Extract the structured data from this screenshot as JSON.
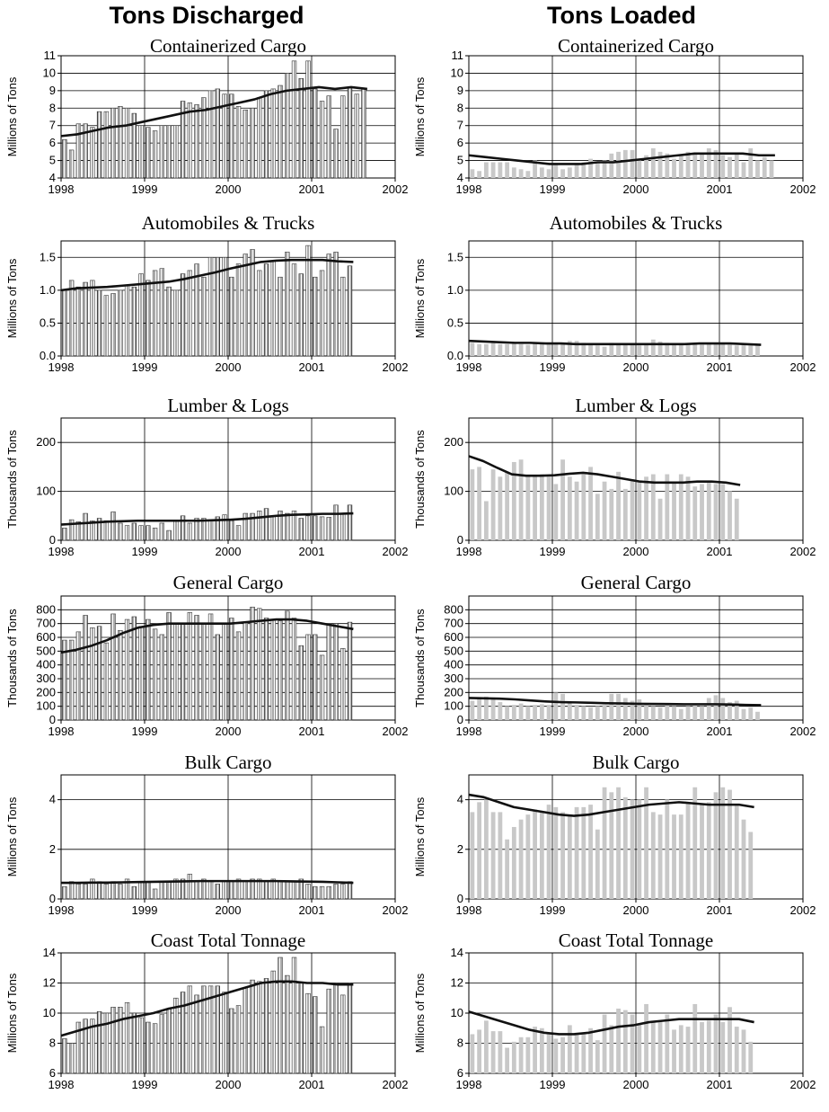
{
  "headings": {
    "left": "Tons Discharged",
    "right": "Tons Loaded"
  },
  "chart_data": [
    {
      "type": "bar",
      "panel": "discharged",
      "title": "Containerized Cargo",
      "ylabel": "Millions of Tons",
      "ylim": [
        4,
        11
      ],
      "yticks": [
        4,
        5,
        6,
        7,
        8,
        9,
        10,
        11
      ],
      "ytick_labels": [
        "4",
        "5",
        "6",
        "7",
        "8",
        "9",
        "10",
        "11"
      ],
      "xlim": [
        1998,
        2002
      ],
      "xticks": [
        "1998",
        "1999",
        "2000",
        "2001",
        "2002"
      ],
      "bar_style": "hatched",
      "x_start": 1998.0,
      "x_step": 0.0833,
      "values": [
        6.2,
        5.6,
        7.1,
        7.1,
        6.9,
        7.8,
        7.8,
        8.0,
        8.1,
        8.0,
        7.7,
        7.0,
        6.9,
        6.7,
        7.0,
        7.0,
        7.0,
        8.4,
        8.3,
        8.2,
        8.6,
        9.0,
        9.1,
        8.8,
        8.8,
        8.1,
        7.9,
        8.0,
        8.6,
        9.0,
        9.1,
        9.3,
        10.0,
        10.7,
        9.7,
        10.7,
        9.1,
        8.4,
        8.7,
        6.8,
        8.7,
        9.2,
        8.8,
        9.1
      ],
      "trend": [
        6.4,
        6.5,
        6.7,
        6.9,
        7.0,
        7.2,
        7.4,
        7.6,
        7.8,
        7.9,
        8.1,
        8.3,
        8.5,
        8.8,
        9.0,
        9.1,
        9.2,
        9.1,
        9.2,
        9.1
      ]
    },
    {
      "type": "bar",
      "panel": "loaded",
      "title": "Containerized Cargo",
      "ylabel": "Millions of Tons",
      "ylim": [
        4,
        11
      ],
      "yticks": [
        4,
        5,
        6,
        7,
        8,
        9,
        10,
        11
      ],
      "ytick_labels": [
        "4",
        "5",
        "6",
        "7",
        "8",
        "9",
        "10",
        "11"
      ],
      "xlim": [
        1998,
        2002
      ],
      "xticks": [
        "1998",
        "1999",
        "2000",
        "2001",
        "2002"
      ],
      "bar_style": "gray",
      "x_start": 1998.0,
      "x_step": 0.0833,
      "values": [
        4.5,
        4.4,
        4.9,
        4.9,
        4.9,
        4.9,
        4.6,
        4.5,
        4.4,
        5.0,
        4.6,
        4.5,
        4.8,
        4.5,
        4.6,
        4.8,
        4.9,
        5.1,
        4.9,
        5.0,
        5.4,
        5.5,
        5.6,
        5.6,
        5.0,
        5.3,
        5.7,
        5.5,
        5.4,
        5.1,
        5.3,
        5.5,
        5.4,
        5.4,
        5.7,
        5.6,
        5.3,
        5.2,
        5.4,
        4.9,
        5.7,
        5.0,
        5.2,
        5.0
      ],
      "trend": [
        5.3,
        5.2,
        5.1,
        5.0,
        4.9,
        4.8,
        4.8,
        4.8,
        4.9,
        4.9,
        5.0,
        5.1,
        5.2,
        5.3,
        5.4,
        5.4,
        5.4,
        5.4,
        5.3,
        5.3
      ]
    },
    {
      "type": "bar",
      "panel": "discharged",
      "title": "Automobiles & Trucks",
      "ylabel": "Millions of Tons",
      "ylim": [
        0,
        1.75
      ],
      "yticks": [
        0,
        0.5,
        1.0,
        1.5
      ],
      "ytick_labels": [
        "0.0",
        "0.5",
        "1.0",
        "1.5"
      ],
      "xlim": [
        1998,
        2002
      ],
      "xticks": [
        "1998",
        "1999",
        "2000",
        "2001",
        "2002"
      ],
      "bar_style": "hatched",
      "x_start": 1998.0,
      "x_step": 0.0833,
      "values": [
        1.0,
        1.15,
        1.05,
        1.12,
        1.15,
        1.0,
        0.92,
        0.95,
        1.0,
        1.08,
        1.05,
        1.25,
        1.15,
        1.3,
        1.33,
        1.05,
        1.0,
        1.25,
        1.3,
        1.4,
        1.2,
        1.5,
        1.5,
        1.5,
        1.2,
        1.4,
        1.55,
        1.62,
        1.3,
        1.4,
        1.45,
        1.2,
        1.58,
        1.4,
        1.25,
        1.68,
        1.2,
        1.3,
        1.55,
        1.58,
        1.2,
        1.37
      ],
      "trend": [
        1.0,
        1.03,
        1.04,
        1.05,
        1.07,
        1.09,
        1.11,
        1.13,
        1.17,
        1.22,
        1.27,
        1.33,
        1.38,
        1.43,
        1.45,
        1.46,
        1.46,
        1.46,
        1.44,
        1.43
      ]
    },
    {
      "type": "bar",
      "panel": "loaded",
      "title": "Automobiles & Trucks",
      "ylabel": "Millions of Tons",
      "ylim": [
        0,
        1.75
      ],
      "yticks": [
        0,
        0.5,
        1.0,
        1.5
      ],
      "ytick_labels": [
        "0.0",
        "0.5",
        "1.0",
        "1.5"
      ],
      "xlim": [
        1998,
        2002
      ],
      "xticks": [
        "1998",
        "1999",
        "2000",
        "2001",
        "2002"
      ],
      "bar_style": "gray",
      "x_start": 1998.0,
      "x_step": 0.0833,
      "values": [
        0.2,
        0.18,
        0.18,
        0.2,
        0.18,
        0.18,
        0.19,
        0.18,
        0.17,
        0.2,
        0.19,
        0.18,
        0.18,
        0.18,
        0.23,
        0.23,
        0.2,
        0.18,
        0.16,
        0.14,
        0.2,
        0.18,
        0.17,
        0.18,
        0.16,
        0.18,
        0.25,
        0.22,
        0.2,
        0.19,
        0.18,
        0.17,
        0.18,
        0.17,
        0.18,
        0.19,
        0.18,
        0.17,
        0.16,
        0.17,
        0.16,
        0.16
      ],
      "trend": [
        0.23,
        0.22,
        0.21,
        0.2,
        0.2,
        0.19,
        0.19,
        0.18,
        0.18,
        0.18,
        0.18,
        0.18,
        0.18,
        0.18,
        0.18,
        0.19,
        0.19,
        0.19,
        0.18,
        0.17
      ]
    },
    {
      "type": "bar",
      "panel": "discharged",
      "title": "Lumber & Logs",
      "ylabel": "Thousands of Tons",
      "ylim": [
        0,
        250
      ],
      "yticks": [
        0,
        100,
        200
      ],
      "ytick_labels": [
        "0",
        "100",
        "200"
      ],
      "xlim": [
        1998,
        2002
      ],
      "xticks": [
        "1998",
        "1999",
        "2000",
        "2001",
        "2002"
      ],
      "bar_style": "hatched",
      "x_start": 1998.0,
      "x_step": 0.0833,
      "values": [
        25,
        42,
        38,
        55,
        40,
        45,
        40,
        58,
        35,
        30,
        35,
        30,
        30,
        25,
        35,
        20,
        40,
        50,
        35,
        45,
        45,
        40,
        48,
        52,
        40,
        30,
        55,
        55,
        60,
        65,
        50,
        60,
        55,
        60,
        45,
        50,
        50,
        48,
        47,
        72,
        55,
        72
      ],
      "trend": [
        32,
        34,
        36,
        38,
        39,
        40,
        40,
        40,
        40,
        40,
        41,
        42,
        44,
        47,
        50,
        52,
        53,
        54,
        54,
        55
      ]
    },
    {
      "type": "bar",
      "panel": "loaded",
      "title": "Lumber & Logs",
      "ylabel": "Thousands of Tons",
      "ylim": [
        0,
        250
      ],
      "yticks": [
        0,
        100,
        200
      ],
      "ytick_labels": [
        "0",
        "100",
        "200"
      ],
      "xlim": [
        1998,
        2002
      ],
      "xticks": [
        "1998",
        "1999",
        "2000",
        "2001",
        "2002"
      ],
      "bar_style": "gray",
      "x_start": 1998.0,
      "x_step": 0.0833,
      "values": [
        145,
        150,
        80,
        145,
        130,
        140,
        160,
        165,
        130,
        130,
        135,
        130,
        115,
        165,
        130,
        120,
        135,
        150,
        95,
        120,
        105,
        140,
        105,
        125,
        120,
        130,
        135,
        85,
        135,
        120,
        135,
        130,
        110,
        115,
        120,
        115,
        115,
        100,
        85
      ],
      "trend": [
        172,
        162,
        148,
        135,
        132,
        132,
        133,
        136,
        138,
        135,
        130,
        125,
        120,
        118,
        118,
        118,
        120,
        120,
        118,
        113
      ]
    },
    {
      "type": "bar",
      "panel": "discharged",
      "title": "General Cargo",
      "ylabel": "Thousands of Tons",
      "ylim": [
        0,
        900
      ],
      "yticks": [
        0,
        100,
        200,
        300,
        400,
        500,
        600,
        700,
        800
      ],
      "ytick_labels": [
        "0",
        "100",
        "200",
        "300",
        "400",
        "500",
        "600",
        "700",
        "800"
      ],
      "xlim": [
        1998,
        2002
      ],
      "xticks": [
        "1998",
        "1999",
        "2000",
        "2001",
        "2002"
      ],
      "bar_style": "hatched",
      "x_start": 1998.0,
      "x_step": 0.0833,
      "values": [
        580,
        580,
        640,
        760,
        670,
        680,
        560,
        770,
        650,
        730,
        750,
        680,
        730,
        660,
        620,
        780,
        700,
        700,
        780,
        760,
        700,
        770,
        620,
        700,
        740,
        640,
        710,
        820,
        810,
        740,
        730,
        720,
        790,
        740,
        540,
        620,
        620,
        470,
        700,
        700,
        520,
        710
      ],
      "trend": [
        490,
        510,
        540,
        580,
        630,
        670,
        690,
        700,
        700,
        700,
        700,
        700,
        710,
        720,
        730,
        730,
        720,
        700,
        680,
        660
      ]
    },
    {
      "type": "bar",
      "panel": "loaded",
      "title": "General Cargo",
      "ylabel": "Thousands of Tons",
      "ylim": [
        0,
        900
      ],
      "yticks": [
        0,
        100,
        200,
        300,
        400,
        500,
        600,
        700,
        800
      ],
      "ytick_labels": [
        "0",
        "100",
        "200",
        "300",
        "400",
        "500",
        "600",
        "700",
        "800"
      ],
      "xlim": [
        1998,
        2002
      ],
      "xticks": [
        "1998",
        "1999",
        "2000",
        "2001",
        "2002"
      ],
      "bar_style": "gray",
      "x_start": 1998.0,
      "x_step": 0.0833,
      "values": [
        140,
        165,
        170,
        150,
        130,
        100,
        110,
        120,
        100,
        110,
        115,
        110,
        200,
        190,
        130,
        110,
        100,
        90,
        100,
        110,
        190,
        190,
        160,
        140,
        150,
        110,
        100,
        90,
        110,
        100,
        80,
        100,
        120,
        100,
        160,
        180,
        160,
        130,
        140,
        80,
        90,
        60
      ],
      "trend": [
        160,
        158,
        155,
        150,
        142,
        135,
        130,
        128,
        125,
        122,
        120,
        118,
        117,
        116,
        115,
        115,
        115,
        113,
        110,
        108
      ]
    },
    {
      "type": "bar",
      "panel": "discharged",
      "title": "Bulk Cargo",
      "ylabel": "Millions of Tons",
      "ylim": [
        0,
        5
      ],
      "yticks": [
        0,
        2,
        4
      ],
      "ytick_labels": [
        "0",
        "2",
        "4"
      ],
      "xlim": [
        1998,
        2002
      ],
      "xticks": [
        "1998",
        "1999",
        "2000",
        "2001",
        "2002"
      ],
      "bar_style": "hatched",
      "x_start": 1998.0,
      "x_step": 0.0833,
      "values": [
        0.5,
        0.7,
        0.6,
        0.6,
        0.8,
        0.7,
        0.6,
        0.7,
        0.6,
        0.8,
        0.5,
        0.7,
        0.7,
        0.4,
        0.7,
        0.7,
        0.8,
        0.8,
        1.0,
        0.7,
        0.8,
        0.7,
        0.6,
        0.7,
        0.7,
        0.8,
        0.7,
        0.8,
        0.8,
        0.7,
        0.8,
        0.7,
        0.7,
        0.7,
        0.8,
        0.6,
        0.5,
        0.5,
        0.5,
        0.6,
        0.6,
        0.7
      ],
      "trend": [
        0.65,
        0.65,
        0.66,
        0.66,
        0.67,
        0.68,
        0.69,
        0.7,
        0.71,
        0.72,
        0.72,
        0.72,
        0.72,
        0.72,
        0.72,
        0.71,
        0.7,
        0.69,
        0.67,
        0.65
      ]
    },
    {
      "type": "bar",
      "panel": "loaded",
      "title": "Bulk Cargo",
      "ylabel": "Millions of Tons",
      "ylim": [
        0,
        5
      ],
      "yticks": [
        0,
        2,
        4
      ],
      "ytick_labels": [
        "0",
        "2",
        "4"
      ],
      "xlim": [
        1998,
        2002
      ],
      "xticks": [
        "1998",
        "1999",
        "2000",
        "2001",
        "2002"
      ],
      "bar_style": "gray",
      "x_start": 1998.0,
      "x_step": 0.0833,
      "values": [
        3.5,
        3.9,
        4.0,
        3.5,
        3.5,
        2.4,
        2.9,
        3.2,
        3.4,
        3.6,
        3.5,
        3.8,
        3.7,
        3.5,
        3.4,
        3.7,
        3.7,
        3.8,
        2.8,
        4.5,
        4.3,
        4.5,
        4.1,
        4.0,
        4.0,
        4.5,
        3.5,
        3.4,
        4.0,
        3.4,
        3.4,
        3.9,
        4.5,
        3.8,
        3.9,
        4.3,
        4.5,
        4.4,
        3.8,
        3.2,
        2.7
      ],
      "trend": [
        4.2,
        4.1,
        3.9,
        3.7,
        3.6,
        3.5,
        3.4,
        3.35,
        3.4,
        3.5,
        3.6,
        3.7,
        3.8,
        3.85,
        3.9,
        3.85,
        3.8,
        3.8,
        3.8,
        3.7
      ]
    },
    {
      "type": "bar",
      "panel": "discharged",
      "title": "Coast Total Tonnage",
      "ylabel": "Millions of Tons",
      "ylim": [
        6,
        14
      ],
      "yticks": [
        6,
        8,
        10,
        12,
        14
      ],
      "ytick_labels": [
        "6",
        "8",
        "10",
        "12",
        "14"
      ],
      "xlim": [
        1998,
        2002
      ],
      "xticks": [
        "1998",
        "1999",
        "2000",
        "2001",
        "2002"
      ],
      "bar_style": "hatched",
      "x_start": 1998.0,
      "x_step": 0.0833,
      "values": [
        8.3,
        8.0,
        9.4,
        9.6,
        9.6,
        10.1,
        10.0,
        10.4,
        10.4,
        10.7,
        10.0,
        9.7,
        9.4,
        9.3,
        9.9,
        10.3,
        11.0,
        11.4,
        11.8,
        11.2,
        11.8,
        11.8,
        11.8,
        11.4,
        10.3,
        10.5,
        11.7,
        12.2,
        12.1,
        12.3,
        12.8,
        13.7,
        12.5,
        13.7,
        12.0,
        11.3,
        11.1,
        9.1,
        11.6,
        12.0,
        11.2,
        12.0
      ],
      "trend": [
        8.5,
        8.8,
        9.1,
        9.3,
        9.6,
        9.8,
        10.0,
        10.3,
        10.5,
        10.8,
        11.1,
        11.4,
        11.7,
        12.0,
        12.1,
        12.1,
        12.0,
        12.0,
        11.9,
        11.9
      ]
    },
    {
      "type": "bar",
      "panel": "loaded",
      "title": "Coast Total Tonnage",
      "ylabel": "Millions of Tons",
      "ylim": [
        6,
        14
      ],
      "yticks": [
        6,
        8,
        10,
        12,
        14
      ],
      "ytick_labels": [
        "6",
        "8",
        "10",
        "12",
        "14"
      ],
      "xlim": [
        1998,
        2002
      ],
      "xticks": [
        "1998",
        "1999",
        "2000",
        "2001",
        "2002"
      ],
      "bar_style": "gray",
      "x_start": 1998.0,
      "x_step": 0.0833,
      "values": [
        8.6,
        8.9,
        9.5,
        8.8,
        8.8,
        7.7,
        8.1,
        8.4,
        8.4,
        9.1,
        9.0,
        8.6,
        8.3,
        8.4,
        9.2,
        8.7,
        8.7,
        9.0,
        8.2,
        9.9,
        9.2,
        10.3,
        10.2,
        9.9,
        9.3,
        10.6,
        9.5,
        9.4,
        9.9,
        8.9,
        9.2,
        9.1,
        10.6,
        9.4,
        9.5,
        9.9,
        9.4,
        10.4,
        9.1,
        8.9,
        8.1
      ],
      "trend": [
        10.1,
        9.8,
        9.5,
        9.2,
        8.9,
        8.7,
        8.6,
        8.6,
        8.7,
        8.9,
        9.1,
        9.2,
        9.4,
        9.5,
        9.6,
        9.6,
        9.6,
        9.6,
        9.6,
        9.4
      ]
    }
  ]
}
